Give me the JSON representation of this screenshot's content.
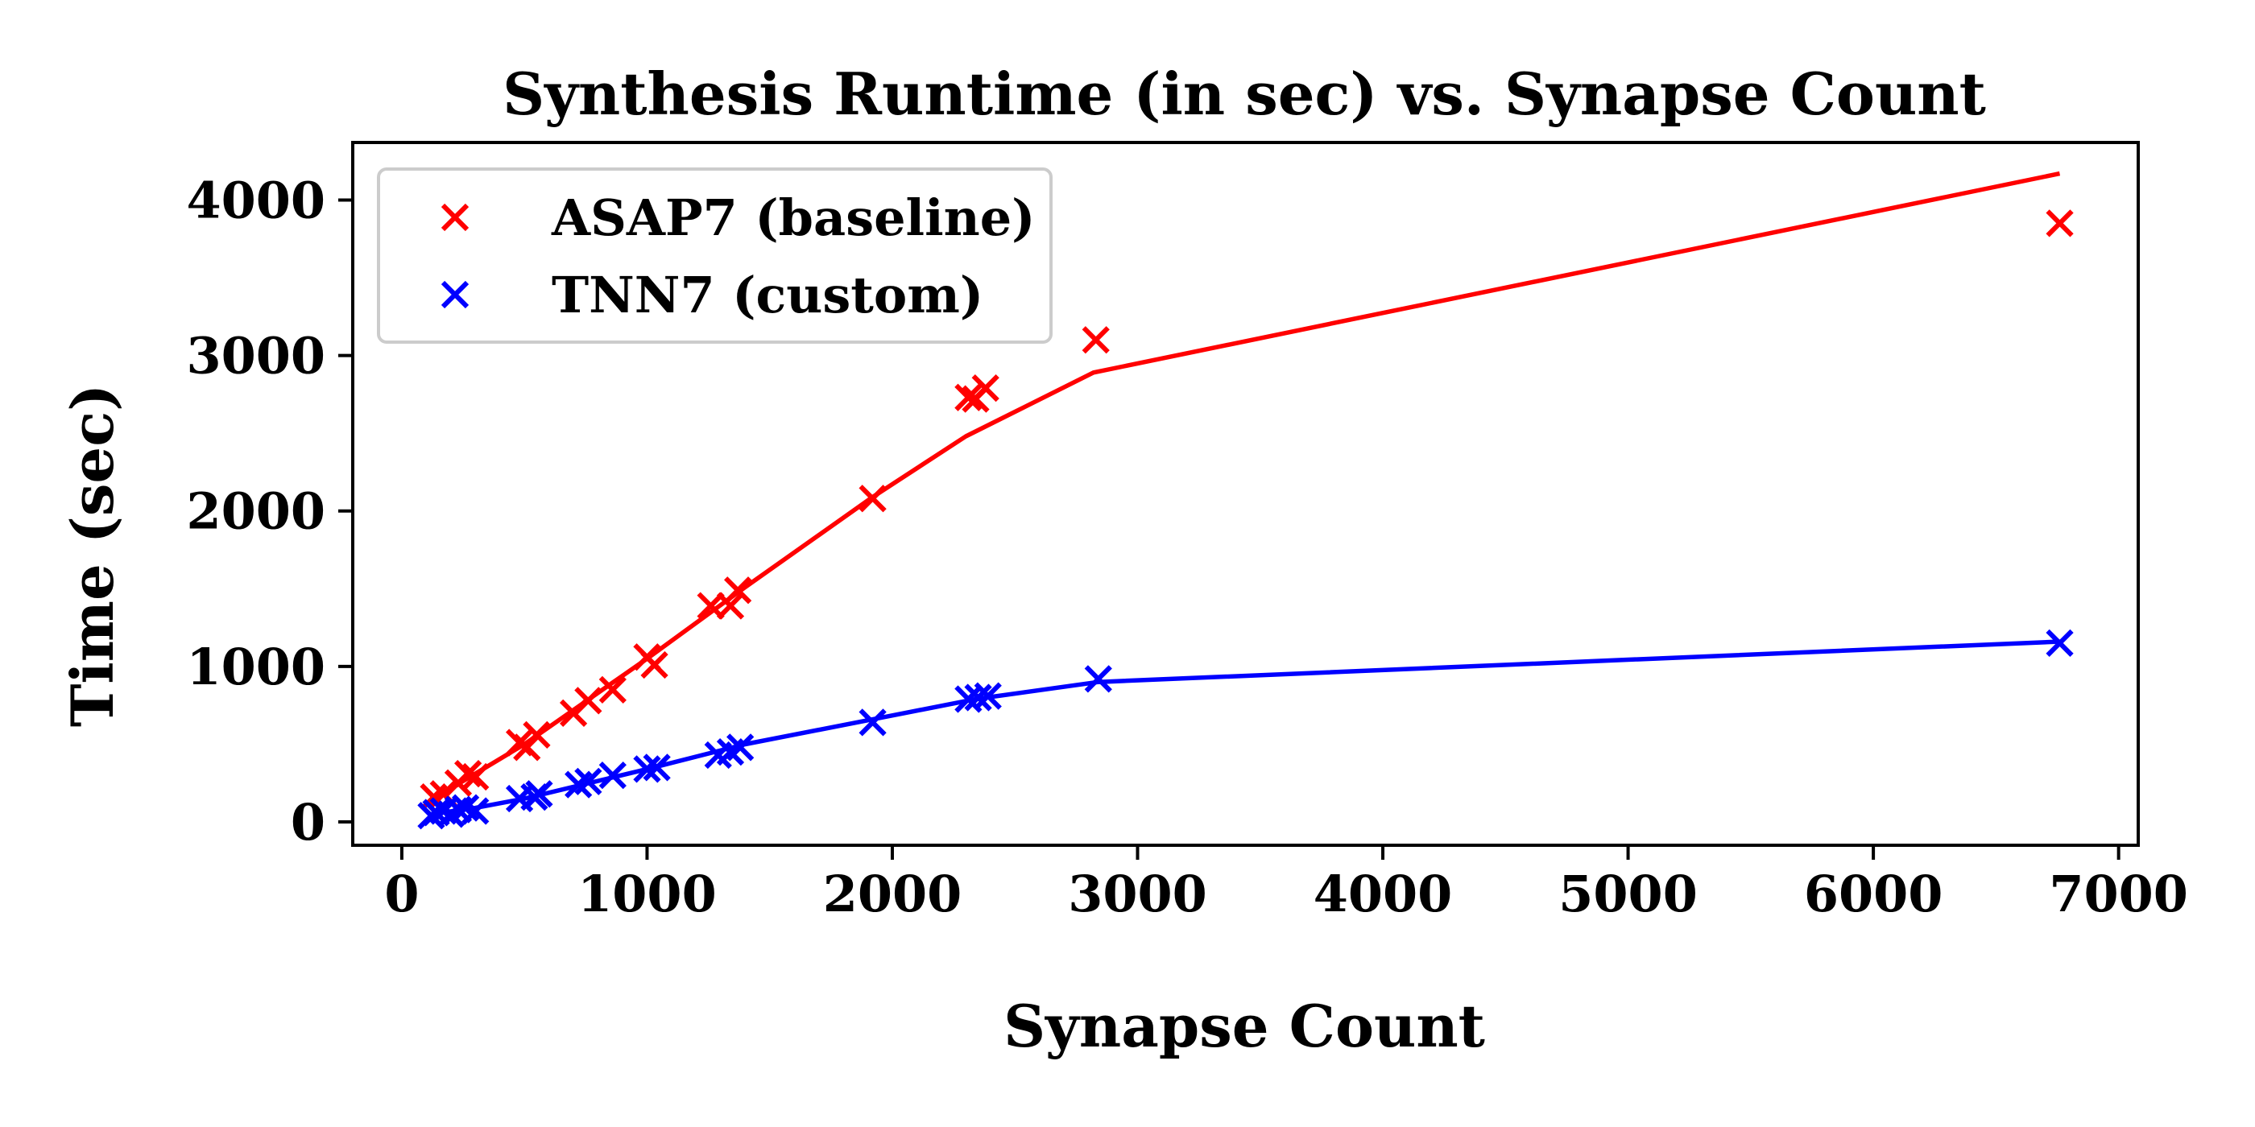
{
  "chart_data": {
    "type": "scatter",
    "title": "Synthesis Runtime (in sec) vs. Synapse Count",
    "xlabel": "Synapse Count",
    "ylabel": "Time (sec)",
    "xlim": [
      -200,
      7080
    ],
    "ylim": [
      -150,
      4370
    ],
    "xticks": [
      0,
      1000,
      2000,
      3000,
      4000,
      5000,
      6000,
      7000
    ],
    "yticks": [
      0,
      1000,
      2000,
      3000,
      4000
    ],
    "grid": false,
    "legend_position": "top-left",
    "series": [
      {
        "name": "ASAP7 (baseline)",
        "color": "#ff0000",
        "points": [
          [
            130,
            160
          ],
          [
            170,
            180
          ],
          [
            230,
            250
          ],
          [
            270,
            310
          ],
          [
            300,
            290
          ],
          [
            480,
            510
          ],
          [
            510,
            480
          ],
          [
            550,
            560
          ],
          [
            700,
            700
          ],
          [
            760,
            780
          ],
          [
            860,
            850
          ],
          [
            1000,
            1060
          ],
          [
            1030,
            1010
          ],
          [
            1260,
            1390
          ],
          [
            1340,
            1390
          ],
          [
            1370,
            1490
          ],
          [
            1920,
            2080
          ],
          [
            2310,
            2730
          ],
          [
            2340,
            2720
          ],
          [
            2380,
            2790
          ],
          [
            2830,
            3100
          ],
          [
            6760,
            3850
          ]
        ],
        "fit": [
          [
            130,
            150
          ],
          [
            500,
            500
          ],
          [
            1000,
            1050
          ],
          [
            1400,
            1510
          ],
          [
            1920,
            2090
          ],
          [
            2300,
            2480
          ],
          [
            2820,
            2890
          ],
          [
            6760,
            4170
          ]
        ]
      },
      {
        "name": "TNN7 (custom)",
        "color": "#0000ff",
        "points": [
          [
            120,
            40
          ],
          [
            140,
            60
          ],
          [
            170,
            70
          ],
          [
            200,
            50
          ],
          [
            230,
            80
          ],
          [
            260,
            90
          ],
          [
            300,
            70
          ],
          [
            480,
            150
          ],
          [
            540,
            160
          ],
          [
            560,
            180
          ],
          [
            720,
            240
          ],
          [
            760,
            260
          ],
          [
            860,
            300
          ],
          [
            1000,
            340
          ],
          [
            1040,
            350
          ],
          [
            1290,
            430
          ],
          [
            1340,
            450
          ],
          [
            1380,
            480
          ],
          [
            1920,
            640
          ],
          [
            2310,
            790
          ],
          [
            2350,
            800
          ],
          [
            2390,
            810
          ],
          [
            2840,
            920
          ],
          [
            6760,
            1150
          ]
        ],
        "fit": [
          [
            120,
            50
          ],
          [
            300,
            90
          ],
          [
            500,
            150
          ],
          [
            1000,
            340
          ],
          [
            1400,
            500
          ],
          [
            1920,
            660
          ],
          [
            2340,
            790
          ],
          [
            2840,
            900
          ],
          [
            6760,
            1160
          ]
        ]
      }
    ]
  }
}
